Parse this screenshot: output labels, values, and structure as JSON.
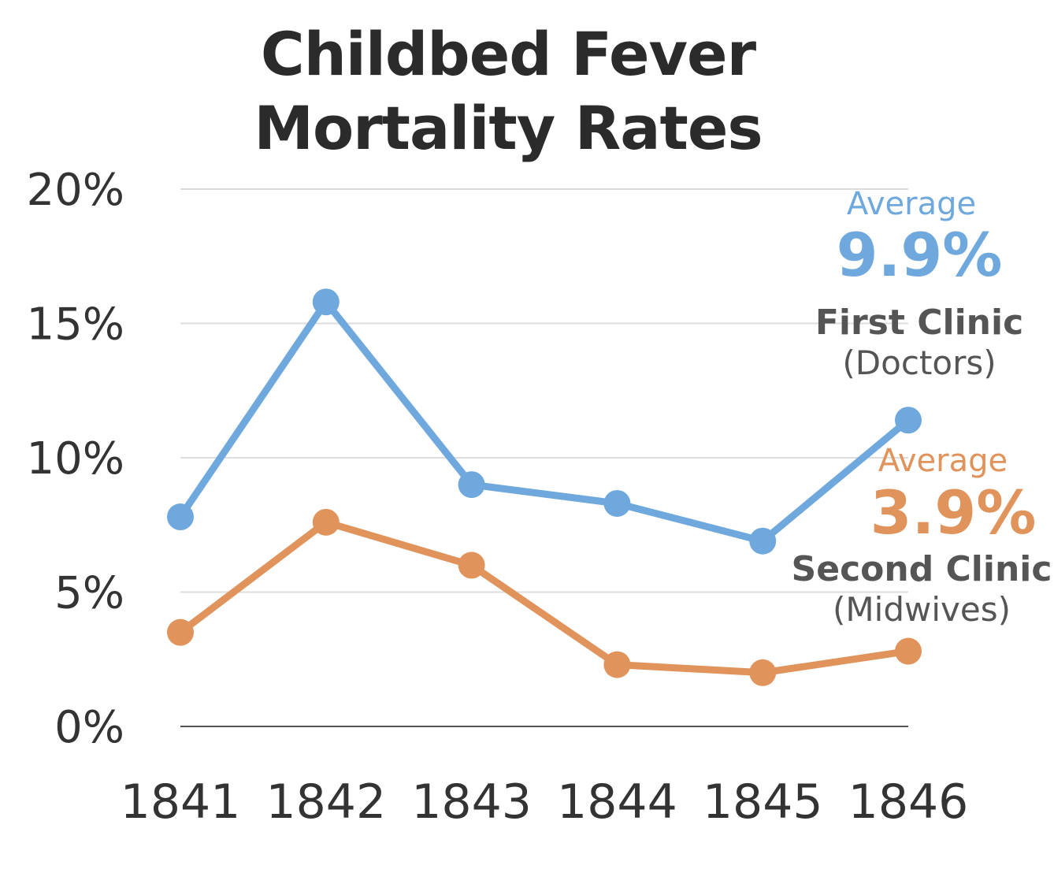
{
  "chart_data": {
    "type": "line",
    "title_lines": [
      "Childbed Fever",
      "Mortality Rates"
    ],
    "categories": [
      "1841",
      "1842",
      "1843",
      "1844",
      "1845",
      "1846"
    ],
    "y_tick_labels": [
      "0%",
      "5%",
      "10%",
      "15%",
      "20%"
    ],
    "y_ticks": [
      0,
      5,
      10,
      15,
      20
    ],
    "ylim": [
      0,
      20
    ],
    "grid": true,
    "series": [
      {
        "name": "First Clinic",
        "subtitle": "(Doctors)",
        "average_label": "Average",
        "average_value": "9.9%",
        "color": "#6fa8dc",
        "values": [
          7.8,
          15.8,
          9.0,
          8.3,
          6.9,
          11.4
        ]
      },
      {
        "name": "Second Clinic",
        "subtitle": "(Midwives)",
        "average_label": "Average",
        "average_value": "3.9%",
        "color": "#e0935a",
        "values": [
          3.5,
          7.6,
          6.0,
          2.3,
          2.0,
          2.8
        ]
      }
    ]
  }
}
